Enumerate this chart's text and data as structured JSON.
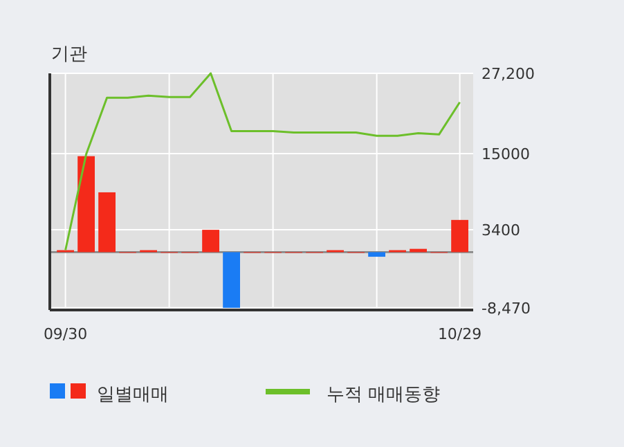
{
  "chart_data": {
    "type": "bar",
    "title": "기관",
    "categories": [
      "09/30",
      null,
      null,
      null,
      null,
      null,
      null,
      null,
      null,
      null,
      null,
      null,
      null,
      null,
      null,
      null,
      null,
      null,
      null,
      "10/29"
    ],
    "series": [
      {
        "name": "일별매매",
        "colors": [
          "#f42a1a",
          "#f42a1a",
          "#f42a1a",
          "#f42a1a",
          "#f42a1a",
          "#f42a1a",
          "#f42a1a",
          "#f42a1a",
          "#1a7cf4",
          "#f42a1a",
          "#f42a1a",
          "#f42a1a",
          "#f42a1a",
          "#f42a1a",
          "#f42a1a",
          "#1a7cf4",
          "#f42a1a",
          "#f42a1a",
          "#f42a1a",
          "#f42a1a"
        ],
        "values": [
          300,
          14600,
          9100,
          0,
          300,
          0,
          0,
          3400,
          -8470,
          0,
          0,
          0,
          0,
          300,
          0,
          -700,
          300,
          500,
          0,
          4900
        ]
      },
      {
        "name": "누적 매매동향",
        "type": "line",
        "color": "#6cbf2a",
        "values": [
          300,
          14900,
          23500,
          23500,
          23800,
          23600,
          23600,
          27200,
          18400,
          18400,
          18400,
          18200,
          18200,
          18200,
          18200,
          17700,
          17700,
          18100,
          17900,
          22800
        ]
      }
    ],
    "ylim": [
      -8800,
      27200
    ],
    "yticks": [
      {
        "value": 27200,
        "label": "27,200"
      },
      15000,
      3400,
      {
        "value": -8470,
        "label": "-8,470"
      }
    ],
    "grid": true,
    "legend": "bottom left"
  }
}
